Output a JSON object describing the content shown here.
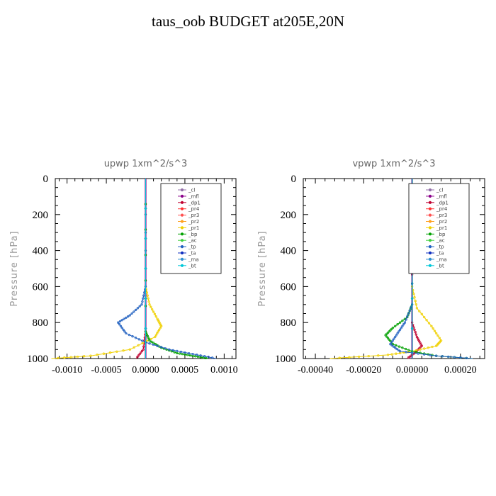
{
  "title": "taus_oob  BUDGET at205E,20N",
  "legend_labels": [
    "_cl",
    "_mfl",
    "_dp1",
    "_pr4",
    "_pr3",
    "_pr2",
    "_pr1",
    "_bp",
    "_ac",
    "_tp",
    "_ta",
    "_ma",
    "_bt"
  ],
  "legend_colors": [
    "#9370a8",
    "#8b008b",
    "#c00030",
    "#ff3030",
    "#ff5050",
    "#ffa020",
    "#f0d000",
    "#00a000",
    "#40d040",
    "#2060c0",
    "#1030c0",
    "#3090d0",
    "#00c8d8"
  ],
  "chart_data": [
    {
      "type": "line",
      "title": "upwp   1xm^2/s^3",
      "ylabel": "Pressure [hPa]",
      "xlabel": "",
      "xlim": [
        -0.00115,
        0.00115
      ],
      "ylim": [
        1000,
        0
      ],
      "xticks": [
        -0.001,
        -0.0005,
        0.0,
        0.0005,
        0.001
      ],
      "xtick_labels": [
        "-0.0010",
        "-0.0005",
        "0.0000",
        "0.0005",
        "0.0010"
      ],
      "yticks": [
        0,
        200,
        400,
        600,
        800,
        1000
      ],
      "ytick_labels": [
        "0",
        "200",
        "400",
        "600",
        "800",
        "1000"
      ],
      "legend_position": "top-right",
      "series": [
        {
          "name": "_cl",
          "points": [
            [
              0,
              0
            ],
            [
              0,
              1000
            ]
          ]
        },
        {
          "name": "_mfl",
          "points": [
            [
              0,
              0
            ],
            [
              0,
              1000
            ]
          ]
        },
        {
          "name": "_dp1",
          "points": [
            [
              0,
              0
            ],
            [
              0,
              850
            ],
            [
              -3e-05,
              950
            ],
            [
              -0.00012,
              1000
            ]
          ]
        },
        {
          "name": "_pr4",
          "points": [
            [
              0,
              0
            ],
            [
              0,
              1000
            ]
          ]
        },
        {
          "name": "_pr3",
          "points": [
            [
              0,
              0
            ],
            [
              0,
              1000
            ]
          ]
        },
        {
          "name": "_pr2",
          "points": [
            [
              0,
              0
            ],
            [
              0,
              1000
            ]
          ]
        },
        {
          "name": "_pr1",
          "points": [
            [
              0,
              0
            ],
            [
              0,
              600
            ],
            [
              5e-05,
              700
            ],
            [
              0.00015,
              780
            ],
            [
              0.0002,
              820
            ],
            [
              0.00012,
              880
            ],
            [
              -0.0002,
              950
            ],
            [
              -0.0007,
              985
            ],
            [
              -0.0012,
              1000
            ]
          ]
        },
        {
          "name": "_bp",
          "points": [
            [
              0,
              0
            ],
            [
              0,
              850
            ],
            [
              5e-05,
              900
            ],
            [
              0.0002,
              940
            ],
            [
              0.0004,
              970
            ],
            [
              0.0006,
              985
            ],
            [
              0.0008,
              1000
            ]
          ]
        },
        {
          "name": "_ac",
          "points": [
            [
              0,
              0
            ],
            [
              0,
              1000
            ]
          ]
        },
        {
          "name": "_tp",
          "points": [
            [
              0,
              0
            ],
            [
              0,
              600
            ],
            [
              -5e-05,
              700
            ],
            [
              -0.0002,
              760
            ],
            [
              -0.00035,
              800
            ],
            [
              -0.00025,
              860
            ],
            [
              0,
              910
            ],
            [
              0.0003,
              950
            ],
            [
              0.0006,
              975
            ],
            [
              0.0009,
              1000
            ]
          ]
        },
        {
          "name": "_ta",
          "points": [
            [
              0,
              0
            ],
            [
              0,
              1000
            ]
          ]
        },
        {
          "name": "_ma",
          "points": [
            [
              0,
              0
            ],
            [
              0,
              1000
            ]
          ]
        },
        {
          "name": "_bt",
          "points": [
            [
              0,
              0
            ],
            [
              0,
              1000
            ]
          ]
        }
      ]
    },
    {
      "type": "line",
      "title": "vpwp   1xm^2/s^3",
      "ylabel": "Pressure [hPa]",
      "xlabel": "",
      "xlim": [
        -0.00045,
        0.0003
      ],
      "ylim": [
        1000,
        0
      ],
      "xticks": [
        -0.0004,
        -0.0002,
        0.0,
        0.0002
      ],
      "xtick_labels": [
        "-0.00040",
        "-0.00020",
        "0.00000",
        "0.00020"
      ],
      "yticks": [
        0,
        200,
        400,
        600,
        800,
        1000
      ],
      "ytick_labels": [
        "0",
        "200",
        "400",
        "600",
        "800",
        "1000"
      ],
      "legend_position": "top-right",
      "series": [
        {
          "name": "_cl",
          "points": [
            [
              0,
              0
            ],
            [
              0,
              1000
            ]
          ]
        },
        {
          "name": "_mfl",
          "points": [
            [
              0,
              0
            ],
            [
              0,
              1000
            ]
          ]
        },
        {
          "name": "_dp1",
          "points": [
            [
              0,
              0
            ],
            [
              0,
              800
            ],
            [
              2e-05,
              880
            ],
            [
              4e-05,
              930
            ],
            [
              1e-05,
              970
            ],
            [
              -2e-05,
              1000
            ]
          ]
        },
        {
          "name": "_pr4",
          "points": [
            [
              0,
              0
            ],
            [
              0,
              1000
            ]
          ]
        },
        {
          "name": "_pr3",
          "points": [
            [
              0,
              0
            ],
            [
              0,
              1000
            ]
          ]
        },
        {
          "name": "_pr2",
          "points": [
            [
              0,
              0
            ],
            [
              0,
              1000
            ]
          ]
        },
        {
          "name": "_pr1",
          "points": [
            [
              0,
              0
            ],
            [
              0,
              600
            ],
            [
              2e-05,
              720
            ],
            [
              8e-05,
              820
            ],
            [
              0.00012,
              900
            ],
            [
              0.0001,
              930
            ],
            [
              0,
              960
            ],
            [
              -0.0001,
              980
            ],
            [
              -0.00034,
              1000
            ]
          ]
        },
        {
          "name": "_bp",
          "points": [
            [
              0,
              0
            ],
            [
              0,
              700
            ],
            [
              -2e-05,
              770
            ],
            [
              -8e-05,
              830
            ],
            [
              -0.00011,
              870
            ],
            [
              -8e-05,
              920
            ],
            [
              0,
              960
            ],
            [
              0.0001,
              985
            ],
            [
              0.00025,
              1000
            ]
          ]
        },
        {
          "name": "_ac",
          "points": [
            [
              0,
              0
            ],
            [
              0,
              1000
            ]
          ]
        },
        {
          "name": "_tp",
          "points": [
            [
              0,
              0
            ],
            [
              0,
              700
            ],
            [
              -3e-05,
              800
            ],
            [
              -6e-05,
              860
            ],
            [
              -9e-05,
              920
            ],
            [
              -5e-05,
              960
            ],
            [
              0.0001,
              985
            ],
            [
              0.00025,
              1000
            ]
          ]
        },
        {
          "name": "_ta",
          "points": [
            [
              0,
              0
            ],
            [
              0,
              1000
            ]
          ]
        },
        {
          "name": "_ma",
          "points": [
            [
              0,
              0
            ],
            [
              0,
              1000
            ]
          ]
        },
        {
          "name": "_bt",
          "points": [
            [
              0,
              0
            ],
            [
              0,
              1000
            ]
          ]
        }
      ]
    }
  ]
}
